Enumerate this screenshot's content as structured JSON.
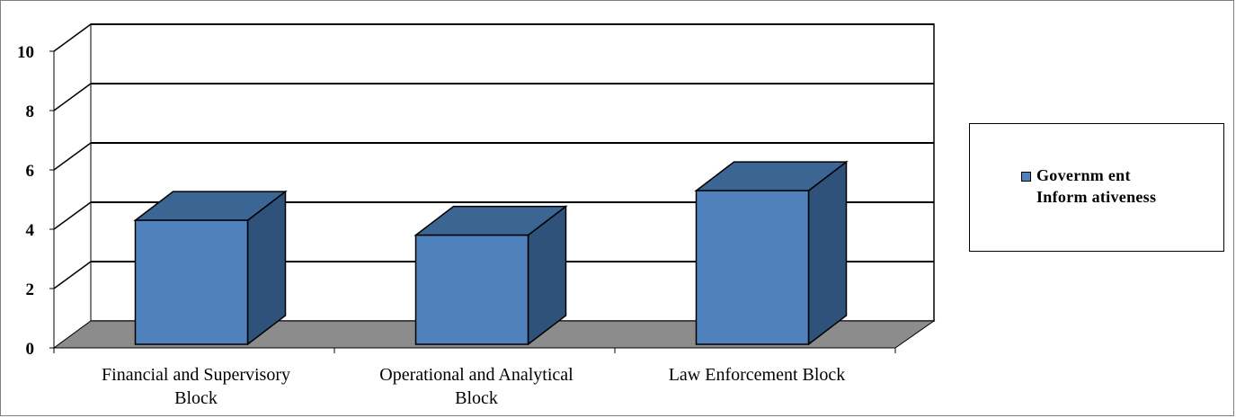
{
  "chart_data": {
    "type": "bar",
    "title": "",
    "xlabel": "",
    "ylabel": "",
    "categories": [
      [
        "Financial and Supervisory",
        "Block"
      ],
      [
        "Operational and Analytical",
        "Block"
      ],
      [
        "Law Enforcement Block"
      ]
    ],
    "series": [
      {
        "name": "Government Informativeness",
        "values": [
          4.3,
          3.8,
          5.3
        ],
        "color": "#4f81bd"
      }
    ],
    "ylim": [
      0,
      10
    ],
    "yticks": [
      "0",
      "2",
      "4",
      "6",
      "8",
      "10"
    ],
    "grid": true,
    "legend_position": "right",
    "three_d": true,
    "colors": {
      "bar_front": "#4f81bd",
      "bar_top": "#3b6592",
      "bar_side": "#2e5279",
      "floor": "#8c8c8c",
      "gridline": "#000000"
    }
  },
  "legend": {
    "label_line1": "Governm ent",
    "label_line2": "Inform ativeness"
  }
}
